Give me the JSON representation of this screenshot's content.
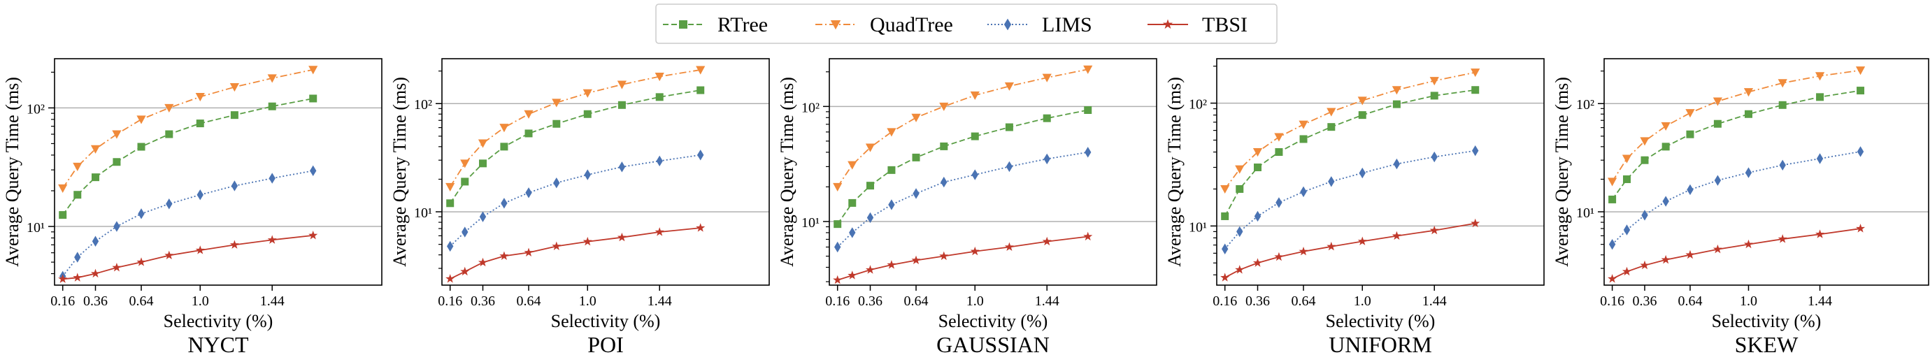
{
  "legend": {
    "placement": "top-center",
    "entries": [
      {
        "name": "RTree",
        "color": "#5a9e45",
        "marker": "square",
        "dash": "dashed"
      },
      {
        "name": "QuadTree",
        "color": "#f08a3a",
        "marker": "triangle-down",
        "dash": "dashdot"
      },
      {
        "name": "LIMS",
        "color": "#4a73b3",
        "marker": "diamond",
        "dash": "dotted"
      },
      {
        "name": "TBSI",
        "color": "#c0392b",
        "marker": "star",
        "dash": "solid"
      }
    ]
  },
  "chart_data": [
    {
      "type": "line",
      "title": "NYCT",
      "xlabel": "Selectivity (%)",
      "ylabel": "Average Query Time (ms)",
      "yscale": "log",
      "xlim": [
        0.11,
        2.11
      ],
      "ylim": [
        3.2,
        260
      ],
      "grid": "y-major",
      "xticks": [
        0.16,
        0.36,
        0.64,
        1.0,
        1.44
      ],
      "xtick_labels": [
        "0.16",
        "0.36",
        "0.64",
        "1.0",
        "1.44"
      ],
      "yticks": [
        10,
        100
      ],
      "ytick_labels": [
        "10¹",
        "10²"
      ],
      "x": [
        0.16,
        0.25,
        0.36,
        0.49,
        0.64,
        0.81,
        1.0,
        1.21,
        1.44,
        1.69
      ],
      "series": [
        {
          "name": "RTree",
          "values": [
            12.5,
            18.5,
            26,
            35,
            47,
            60,
            74,
            87,
            103,
            120
          ]
        },
        {
          "name": "QuadTree",
          "values": [
            21,
            32,
            45,
            60,
            80,
            100,
            124,
            150,
            178,
            210
          ]
        },
        {
          "name": "LIMS",
          "values": [
            3.8,
            5.5,
            7.5,
            10,
            12.8,
            15.5,
            18.5,
            22,
            25.5,
            29.5
          ]
        },
        {
          "name": "TBSI",
          "values": [
            3.6,
            3.7,
            4.0,
            4.5,
            5.0,
            5.7,
            6.3,
            7.0,
            7.7,
            8.4
          ]
        }
      ]
    },
    {
      "type": "line",
      "title": "POI",
      "xlabel": "Selectivity (%)",
      "ylabel": "Average Query Time (ms)",
      "yscale": "log",
      "xlim": [
        0.11,
        2.11
      ],
      "ylim": [
        2.1,
        260
      ],
      "grid": "y-major",
      "xticks": [
        0.16,
        0.36,
        0.64,
        1.0,
        1.44
      ],
      "xtick_labels": [
        "0.16",
        "0.36",
        "0.64",
        "1.0",
        "1.44"
      ],
      "yticks": [
        10,
        100
      ],
      "ytick_labels": [
        "10¹",
        "10²"
      ],
      "x": [
        0.16,
        0.25,
        0.36,
        0.49,
        0.64,
        0.81,
        1.0,
        1.21,
        1.44,
        1.69
      ],
      "series": [
        {
          "name": "RTree",
          "values": [
            12,
            19,
            28,
            40,
            53,
            65,
            80,
            97,
            115,
            133
          ]
        },
        {
          "name": "QuadTree",
          "values": [
            17,
            28,
            43,
            60,
            80,
            102,
            125,
            150,
            178,
            205
          ]
        },
        {
          "name": "LIMS",
          "values": [
            4.8,
            6.5,
            9,
            12,
            15,
            18.5,
            22,
            26,
            29.5,
            33.5
          ]
        },
        {
          "name": "TBSI",
          "values": [
            2.4,
            2.8,
            3.4,
            3.9,
            4.2,
            4.8,
            5.3,
            5.8,
            6.5,
            7.1
          ]
        }
      ]
    },
    {
      "type": "line",
      "title": "GAUSSIAN",
      "xlabel": "Selectivity (%)",
      "ylabel": "Average Query Time (ms)",
      "yscale": "log",
      "xlim": [
        0.11,
        2.11
      ],
      "ylim": [
        2.8,
        260
      ],
      "grid": "y-major",
      "xticks": [
        0.16,
        0.36,
        0.64,
        1.0,
        1.44
      ],
      "xtick_labels": [
        "0.16",
        "0.36",
        "0.64",
        "1.0",
        "1.44"
      ],
      "yticks": [
        10,
        100
      ],
      "ytick_labels": [
        "10¹",
        "10²"
      ],
      "x": [
        0.16,
        0.25,
        0.36,
        0.49,
        0.64,
        0.81,
        1.0,
        1.21,
        1.44,
        1.69
      ],
      "series": [
        {
          "name": "RTree",
          "values": [
            9.5,
            14.5,
            20.5,
            28,
            36,
            45,
            55,
            66,
            79,
            93
          ]
        },
        {
          "name": "QuadTree",
          "values": [
            20,
            31,
            44,
            60,
            80,
            100,
            125,
            150,
            178,
            210
          ]
        },
        {
          "name": "LIMS",
          "values": [
            6,
            8,
            10.8,
            14,
            17.5,
            22,
            25.5,
            30,
            35,
            40
          ]
        },
        {
          "name": "TBSI",
          "values": [
            3.1,
            3.4,
            3.8,
            4.2,
            4.6,
            5.0,
            5.5,
            6.0,
            6.7,
            7.4
          ]
        }
      ]
    },
    {
      "type": "line",
      "title": "UNIFORM",
      "xlabel": "Selectivity (%)",
      "ylabel": "Average Query Time (ms)",
      "yscale": "log",
      "xlim": [
        0.11,
        2.11
      ],
      "ylim": [
        3.3,
        230
      ],
      "grid": "y-major",
      "xticks": [
        0.16,
        0.36,
        0.64,
        1.0,
        1.44
      ],
      "xtick_labels": [
        "0.16",
        "0.36",
        "0.64",
        "1.0",
        "1.44"
      ],
      "yticks": [
        10,
        100
      ],
      "ytick_labels": [
        "10¹",
        "10²"
      ],
      "x": [
        0.16,
        0.25,
        0.36,
        0.49,
        0.64,
        0.81,
        1.0,
        1.21,
        1.44,
        1.69
      ],
      "series": [
        {
          "name": "RTree",
          "values": [
            12,
            20,
            30,
            40,
            51,
            64,
            80,
            98,
            115,
            128
          ]
        },
        {
          "name": "QuadTree",
          "values": [
            20,
            29,
            40,
            53,
            67,
            85,
            105,
            128,
            152,
            178
          ]
        },
        {
          "name": "LIMS",
          "values": [
            6.5,
            9,
            12,
            15.5,
            19,
            23,
            27,
            32,
            36.5,
            41
          ]
        },
        {
          "name": "TBSI",
          "values": [
            3.8,
            4.4,
            5.0,
            5.6,
            6.2,
            6.8,
            7.5,
            8.3,
            9.2,
            10.5
          ]
        }
      ]
    },
    {
      "type": "line",
      "title": "SKEW",
      "xlabel": "Selectivity (%)",
      "ylabel": "Average Query Time (ms)",
      "yscale": "log",
      "xlim": [
        0.11,
        2.11
      ],
      "ylim": [
        2.1,
        260
      ],
      "grid": "y-major",
      "xticks": [
        0.16,
        0.36,
        0.64,
        1.0,
        1.44
      ],
      "xtick_labels": [
        "0.16",
        "0.36",
        "0.64",
        "1.0",
        "1.44"
      ],
      "yticks": [
        10,
        100
      ],
      "ytick_labels": [
        "10¹",
        "10²"
      ],
      "x": [
        0.16,
        0.25,
        0.36,
        0.49,
        0.64,
        0.81,
        1.0,
        1.21,
        1.44,
        1.69
      ],
      "series": [
        {
          "name": "RTree",
          "values": [
            13,
            20,
            30,
            40,
            52,
            65,
            80,
            97,
            115,
            132
          ]
        },
        {
          "name": "QuadTree",
          "values": [
            19,
            31,
            45,
            62,
            82,
            105,
            128,
            155,
            180,
            203
          ]
        },
        {
          "name": "LIMS",
          "values": [
            5,
            6.8,
            9.3,
            12.5,
            16,
            19.5,
            23,
            27,
            31,
            36
          ]
        },
        {
          "name": "TBSI",
          "values": [
            2.4,
            2.8,
            3.2,
            3.6,
            4.0,
            4.5,
            5.0,
            5.6,
            6.2,
            7.0
          ]
        }
      ]
    }
  ]
}
